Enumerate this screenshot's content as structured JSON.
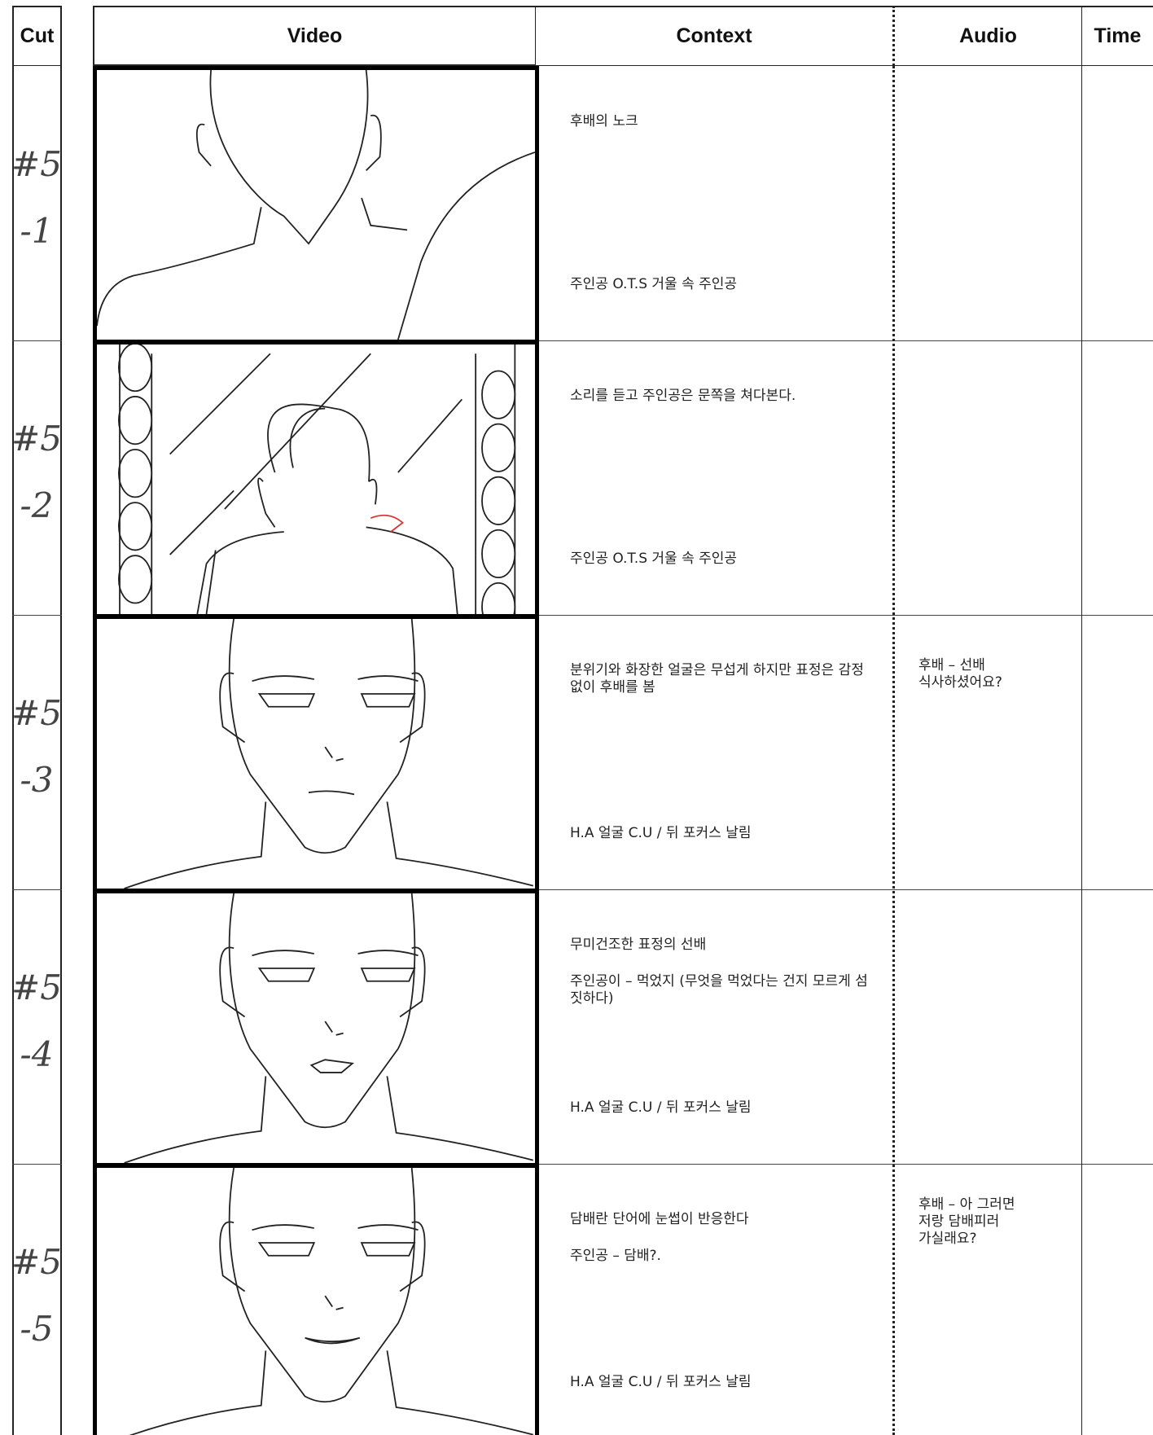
{
  "header": [
    "Cut",
    "Video",
    "Context",
    "Audio",
    "Time"
  ],
  "rows": [
    {
      "cut": [
        "#5",
        "-1"
      ],
      "context": [
        "후배의 노크"
      ],
      "shot": "주인공 O.T.S 거울 속 주인공"
    },
    {
      "cut": [
        "#5",
        "-2"
      ],
      "context": [
        "소리를 듣고 주인공은 문쪽을 쳐다본다."
      ],
      "shot": "주인공 O.T.S 거울 속 주인공"
    },
    {
      "cut": [
        "#5",
        "-3"
      ],
      "context": [
        "분위기와 화장한 얼굴은 무섭게 하지만 표정은 감정없이 후배를 봄"
      ],
      "shot": "H.A 얼굴 C.U / 뒤 포커스 날림",
      "audio": [
        "후배 – 선배",
        "식사하셨어요?"
      ]
    },
    {
      "cut": [
        "#5",
        "-4"
      ],
      "context": [
        "무미건조한 표정의 선배",
        "주인공이 – 먹었지 (무엇을 먹었다는 건지 모르게 섬짓하다)"
      ],
      "shot": "H.A 얼굴 C.U / 뒤 포커스 날림"
    },
    {
      "cut": [
        "#5",
        "-5"
      ],
      "context": [
        "담배란 단어에 눈썹이 반응한다",
        "주인공 – 담배?."
      ],
      "shot": "H.A 얼굴 C.U / 뒤 포커스 날림",
      "audio": [
        "후배 – 아 그러면",
        "저랑 담배피러",
        "가실래요?"
      ]
    }
  ]
}
